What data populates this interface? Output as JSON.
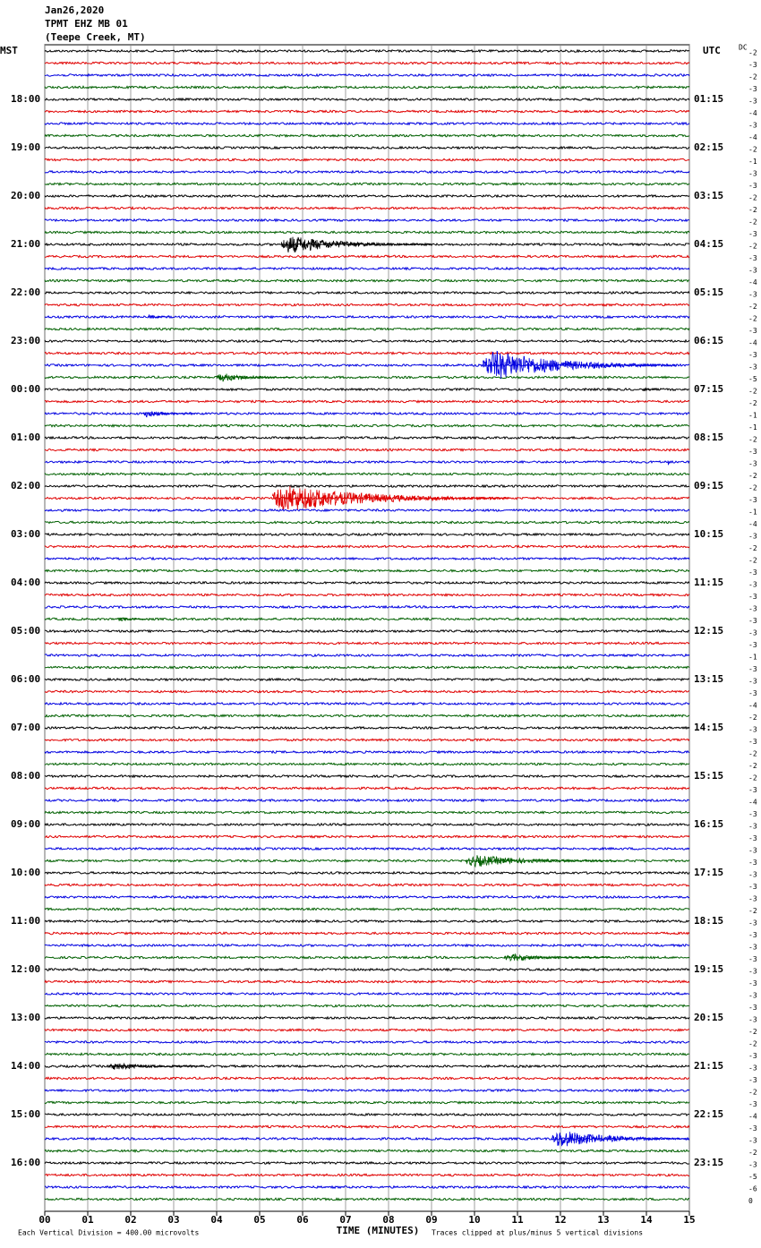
{
  "header": {
    "date": "Jan26,2020",
    "station": "TPMT EHZ MB 01",
    "location": "(Teepe Creek, MT)"
  },
  "left_label": "MST",
  "right_label": "UTC",
  "dc_label": "DC",
  "chart_data": {
    "type": "helicorder",
    "x_label": "TIME (MINUTES)",
    "xlim": [
      0,
      15
    ],
    "xticks": [
      {
        "value": 0,
        "label": "00"
      },
      {
        "value": 1,
        "label": "01"
      },
      {
        "value": 2,
        "label": "02"
      },
      {
        "value": 3,
        "label": "03"
      },
      {
        "value": 4,
        "label": "04"
      },
      {
        "value": 5,
        "label": "05"
      },
      {
        "value": 6,
        "label": "06"
      },
      {
        "value": 7,
        "label": "07"
      },
      {
        "value": 8,
        "label": "08"
      },
      {
        "value": 9,
        "label": "09"
      },
      {
        "value": 10,
        "label": "10"
      },
      {
        "value": 11,
        "label": "11"
      },
      {
        "value": 12,
        "label": "12"
      },
      {
        "value": 13,
        "label": "13"
      },
      {
        "value": 14,
        "label": "14"
      },
      {
        "value": 15,
        "label": "15"
      }
    ],
    "grid": true,
    "colors": [
      "#000000",
      "#e00000",
      "#0000e0",
      "#006000"
    ],
    "hour_labels": [
      {
        "mst": "18:00",
        "utc": "01:15"
      },
      {
        "mst": "19:00",
        "utc": "02:15"
      },
      {
        "mst": "20:00",
        "utc": "03:15"
      },
      {
        "mst": "21:00",
        "utc": "04:15"
      },
      {
        "mst": "22:00",
        "utc": "05:15"
      },
      {
        "mst": "23:00",
        "utc": "06:15"
      },
      {
        "mst": "00:00",
        "utc": "07:15"
      },
      {
        "mst": "01:00",
        "utc": "08:15"
      },
      {
        "mst": "02:00",
        "utc": "09:15"
      },
      {
        "mst": "03:00",
        "utc": "10:15"
      },
      {
        "mst": "04:00",
        "utc": "11:15"
      },
      {
        "mst": "05:00",
        "utc": "12:15"
      },
      {
        "mst": "06:00",
        "utc": "13:15"
      },
      {
        "mst": "07:00",
        "utc": "14:15"
      },
      {
        "mst": "08:00",
        "utc": "15:15"
      },
      {
        "mst": "09:00",
        "utc": "16:15"
      },
      {
        "mst": "10:00",
        "utc": "17:15"
      },
      {
        "mst": "11:00",
        "utc": "18:15"
      },
      {
        "mst": "12:00",
        "utc": "19:15"
      },
      {
        "mst": "13:00",
        "utc": "20:15"
      },
      {
        "mst": "14:00",
        "utc": "21:15"
      },
      {
        "mst": "15:00",
        "utc": "22:15"
      },
      {
        "mst": "16:00",
        "utc": "23:15"
      }
    ],
    "dc_offsets": [
      -2,
      -3,
      -2,
      -3,
      -3,
      -4,
      -3,
      -4,
      -2,
      -1,
      -3,
      -3,
      -2,
      -2,
      -2,
      -3,
      -2,
      -3,
      -3,
      -4,
      -3,
      -2,
      -2,
      -3,
      -4,
      -3,
      -3,
      -5,
      -2,
      -2,
      -1,
      -1,
      -2,
      -3,
      -3,
      -2,
      -2,
      -3,
      -1,
      -4,
      -3,
      -2,
      -2,
      -3,
      -3,
      -3,
      -3,
      -3,
      -3,
      -3,
      -1,
      -3,
      -3,
      -3,
      -4,
      -2,
      -3,
      -3,
      -2,
      -2,
      -2,
      -3,
      -4,
      -3,
      -3,
      -3,
      -3,
      -3,
      -3,
      -3,
      -3,
      -2,
      -3,
      -3,
      -3,
      -3,
      -3,
      -3,
      -3,
      -3,
      -3,
      -2,
      -2,
      -3,
      -3,
      -3,
      -2,
      -3,
      -4,
      -3,
      -3,
      -2,
      -3,
      -5,
      -6,
      0
    ],
    "events": [
      {
        "trace": 16,
        "start": 5.5,
        "duration": 3.5,
        "amplitude": 12
      },
      {
        "trace": 22,
        "start": 2.4,
        "duration": 0.5,
        "amplitude": 3
      },
      {
        "trace": 26,
        "start": 10.2,
        "duration": 4.5,
        "amplitude": 20
      },
      {
        "trace": 27,
        "start": 4.0,
        "duration": 1.8,
        "amplitude": 6
      },
      {
        "trace": 28,
        "start": 13.9,
        "duration": 0.4,
        "amplitude": 3
      },
      {
        "trace": 30,
        "start": 2.3,
        "duration": 1.2,
        "amplitude": 5
      },
      {
        "trace": 33,
        "start": 5.2,
        "duration": 0.6,
        "amplitude": 2
      },
      {
        "trace": 34,
        "start": 14.5,
        "duration": 0.05,
        "amplitude": 8
      },
      {
        "trace": 37,
        "start": 5.3,
        "duration": 5.5,
        "amplitude": 18
      },
      {
        "trace": 47,
        "start": 1.7,
        "duration": 0.7,
        "amplitude": 3
      },
      {
        "trace": 67,
        "start": 9.8,
        "duration": 3.5,
        "amplitude": 8
      },
      {
        "trace": 75,
        "start": 10.7,
        "duration": 2.5,
        "amplitude": 5
      },
      {
        "trace": 84,
        "start": 1.5,
        "duration": 2.2,
        "amplitude": 5
      },
      {
        "trace": 90,
        "start": 11.8,
        "duration": 3.2,
        "amplitude": 12
      }
    ],
    "footer_left": "Each Vertical Division =  400.00 microvolts",
    "footer_right": "Traces clipped at plus/minus 5 vertical divisions"
  }
}
